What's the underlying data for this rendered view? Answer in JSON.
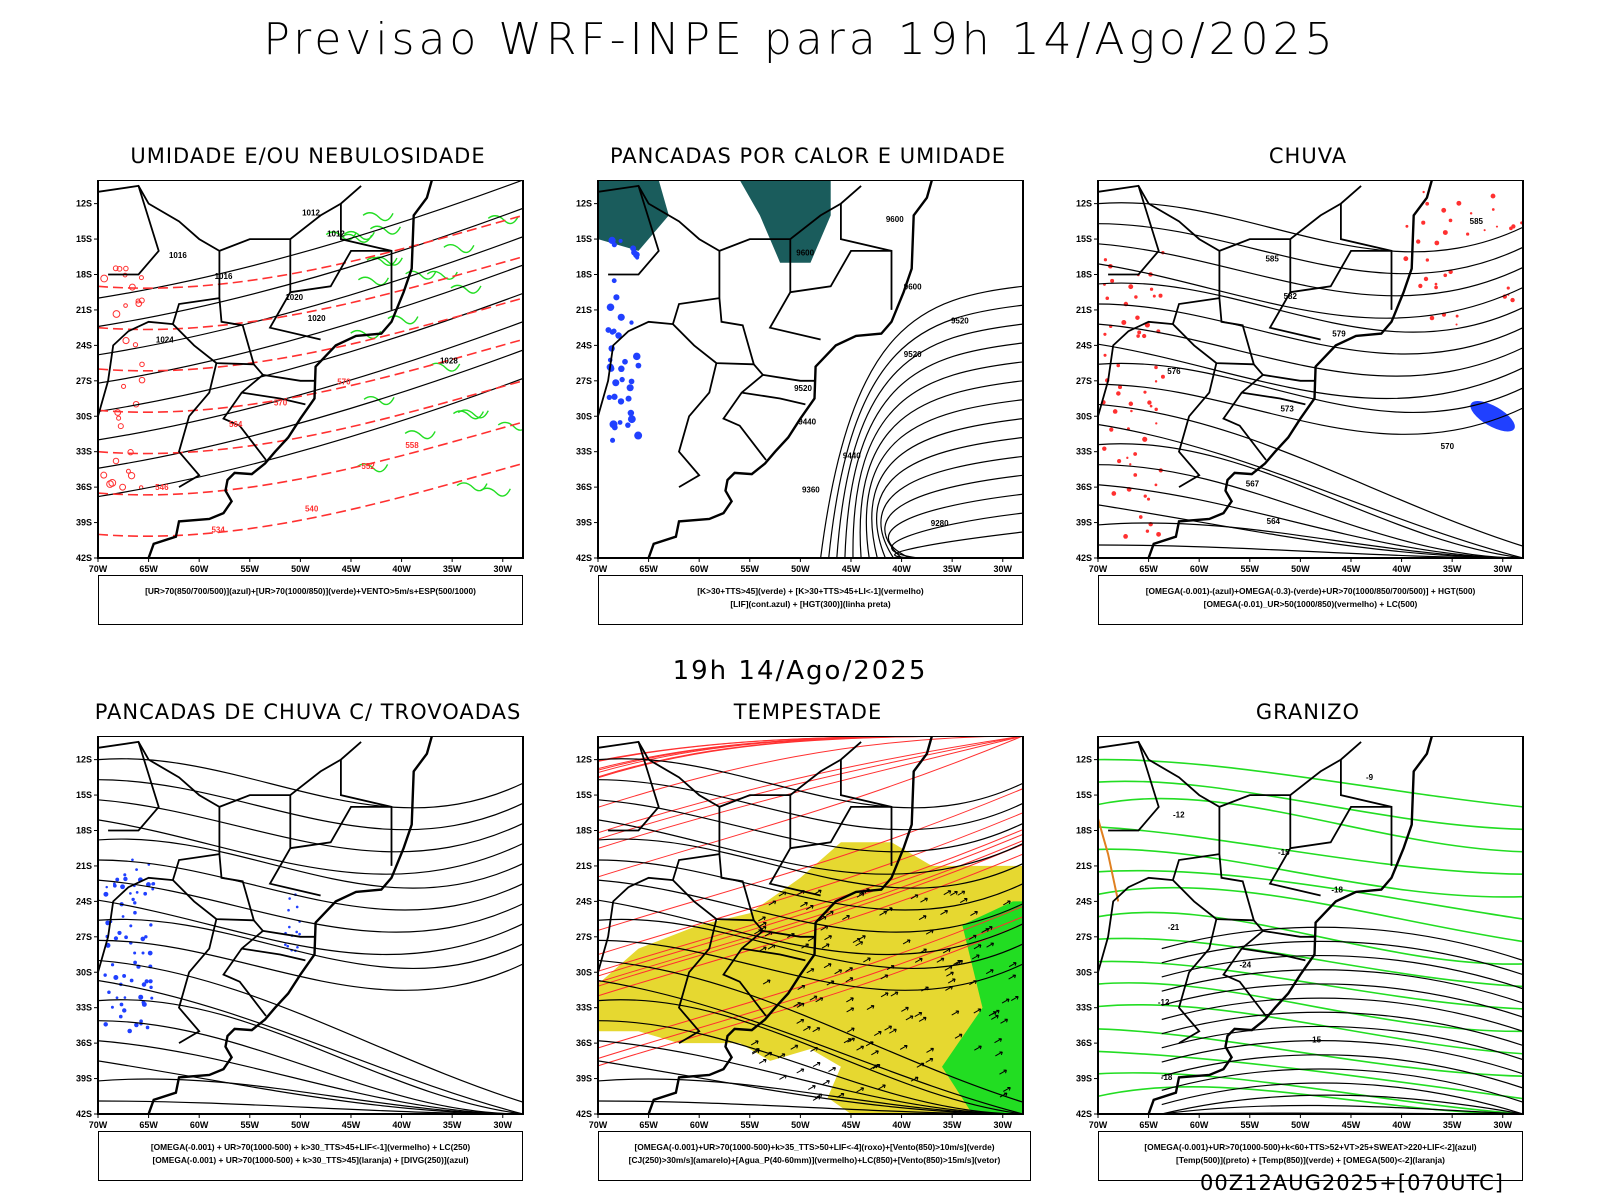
{
  "header": {
    "title": "Previsao WRF-INPE  para 19h 14/Ago/2025",
    "subtitle": "19h 14/Ago/2025"
  },
  "axes": {
    "lat_labels": [
      "12S",
      "15S",
      "18S",
      "21S",
      "24S",
      "27S",
      "30S",
      "33S",
      "36S",
      "39S",
      "42S"
    ],
    "lon_labels": [
      "70W",
      "65W",
      "60W",
      "55W",
      "50W",
      "45W",
      "40W",
      "35W",
      "30W"
    ]
  },
  "colors": {
    "blue": "#2040ff",
    "green": "#22dd22",
    "red": "#ff3030",
    "teal": "#1a5c5c",
    "yellow": "#e6d830",
    "orange": "#e08020",
    "purple": "#9090e0"
  },
  "panels": [
    {
      "title": "UMIDADE E/OU NEBULOSIDADE",
      "legend": [
        "[UR>70(850/700/500)](azul)+[UR>70(1000/850)](verde)+VENTO>5m/s+ESP(500/1000)"
      ],
      "labels": [
        "1012",
        "1012",
        "1016",
        "1016",
        "1020",
        "1020",
        "1024",
        "1028",
        "570",
        "570",
        "564",
        "558",
        "552",
        "546",
        "540",
        "534"
      ]
    },
    {
      "title": "PANCADAS POR CALOR E UMIDADE",
      "legend": [
        "[K>30+TTS>45](verde) + [K>30+TTS>45+LI<-1](vermelho)",
        "[LIF](cont.azul) + [HGT(300)](linha preta)"
      ],
      "labels": [
        "9600",
        "9600",
        "9600",
        "9520",
        "9520",
        "9520",
        "9440",
        "9440",
        "9360",
        "9280"
      ]
    },
    {
      "title": "CHUVA",
      "legend": [
        "[OMEGA(-0.001)-(azul)+OMEGA(-0.3)-(verde)+UR>70(1000/850/700/500)] + HGT(500)",
        "[OMEGA(-0.01)_UR>50(1000/850)(vermelho) + LC(500)"
      ],
      "labels": [
        "585",
        "585",
        "582",
        "579",
        "576",
        "573",
        "570",
        "567",
        "564"
      ]
    },
    {
      "title": "PANCADAS DE CHUVA C/ TROVOADAS",
      "legend": [
        "[OMEGA(-0.001) + UR>70(1000-500) + k>30_TTS>45+LIF<-1](vermelho) + LC(250)",
        "[OMEGA(-0.001) + UR>70(1000-500) + k>30_TTS>45](laranja) + [DIVG(250)](azul)"
      ],
      "labels": []
    },
    {
      "title": "TEMPESTADE",
      "legend": [
        "[OMEGA(-0.001)+UR>70(1000-500)+k>35_TTS>50+LIF<-4](roxo)+[Vento(850)>10m/s](verde)",
        "[CJ(250)>30m/s](amarelo)+[Agua_P(40-60mm)](vermelho)+LC(850)+[Vento(850)>15m/s](vetor)"
      ],
      "labels": []
    },
    {
      "title": "GRANIZO",
      "legend": [
        "[OMEGA(-0.001)+UR>70(1000-500)+k<60+TTS>52+VT>25+SWEAT>220+LIF<-2](azul)",
        "[Temp(500)](preto) + [Temp(850)](verde) + [OMEGA(500)<-2](laranja)"
      ],
      "labels": [
        "-9",
        "-12",
        "-15",
        "-18",
        "-21",
        "-24",
        "-12",
        "-15",
        "-18"
      ]
    }
  ],
  "footer": "00Z12AUG2025+[070UTC]"
}
